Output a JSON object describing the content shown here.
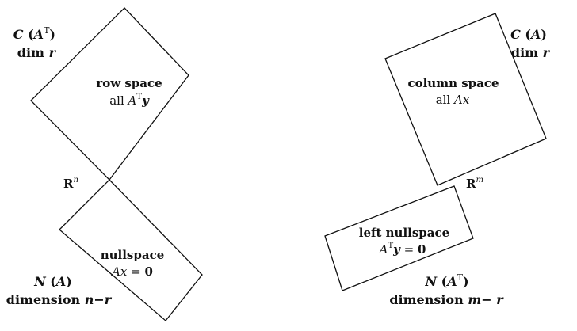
{
  "left_diagram": {
    "row_space": {
      "dimension_name": "C",
      "dimension_arg": "A",
      "dimension_sup": "T",
      "dim_word": "dim",
      "dim_var": "r",
      "title": "row space",
      "desc_prefix": "all",
      "desc_mat": "A",
      "desc_sup": "T",
      "desc_vec": "y"
    },
    "space_label": "R",
    "space_sup": "n",
    "nullspace": {
      "title": "nullspace",
      "eq_lhs": "Ax",
      "eq_op": "=",
      "eq_rhs": "0",
      "dimension_name": "N",
      "dimension_arg": "A",
      "dim_word": "dimension",
      "dim_expr": "n−r"
    }
  },
  "right_diagram": {
    "column_space": {
      "dimension_name": "C",
      "dimension_arg": "A",
      "dim_word": "dim",
      "dim_var": "r",
      "title": "column space",
      "desc_prefix": "all",
      "desc_vec": "Ax"
    },
    "space_label": "R",
    "space_sup": "m",
    "left_nullspace": {
      "title": "left nullspace",
      "eq_mat": "A",
      "eq_sup": "T",
      "eq_vec": "y",
      "eq_op": "=",
      "eq_rhs": "0",
      "dimension_name": "N",
      "dimension_arg": "A",
      "dimension_sup": "T",
      "dim_word": "dimension",
      "dim_expr": "m− r"
    }
  },
  "colors": {
    "stroke": "#111111",
    "background": "#ffffff"
  }
}
